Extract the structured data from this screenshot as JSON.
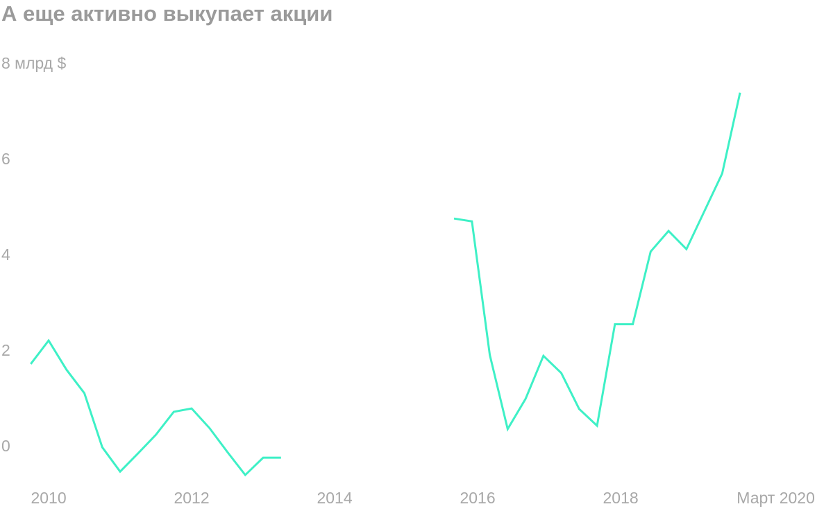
{
  "chart_data": {
    "type": "line",
    "title": "А еще активно выкупает акции",
    "x": [
      2009.75,
      2010,
      2010.25,
      2010.5,
      2010.75,
      2011,
      2011.25,
      2011.5,
      2011.75,
      2012,
      2012.25,
      2012.5,
      2012.75,
      2013,
      2013.25,
      2014.5,
      2015.67,
      2015.92,
      2016.17,
      2016.42,
      2016.67,
      2016.92,
      2017.17,
      2017.42,
      2017.67,
      2017.92,
      2018.17,
      2018.42,
      2018.67,
      2018.92,
      2019.17,
      2019.42,
      2019.67
    ],
    "series": [
      {
        "color": "#3ef0c6",
        "values": [
          1.74,
          2.23,
          1.62,
          1.13,
          0,
          -0.51,
          -0.13,
          0.26,
          0.74,
          0.81,
          0.4,
          -0.1,
          -0.58,
          -0.22,
          -0.22,
          null,
          4.78,
          4.72,
          1.93,
          0.38,
          1.01,
          1.91,
          1.55,
          0.8,
          0.45,
          2.57,
          2.57,
          4.09,
          4.52,
          4.14,
          4.93,
          5.72,
          7.41
        ]
      }
    ],
    "xlim": [
      2009.32,
      2020.97
    ],
    "xticks": [
      2010,
      2012,
      2014,
      2016,
      2018,
      {
        "value": 2020.17,
        "label": "Март 2020"
      }
    ],
    "ylim": [
      -1,
      8
    ],
    "yticks": [
      0,
      2,
      4,
      6,
      {
        "value": 8,
        "label": "8 млрд $"
      }
    ],
    "grid": false
  }
}
